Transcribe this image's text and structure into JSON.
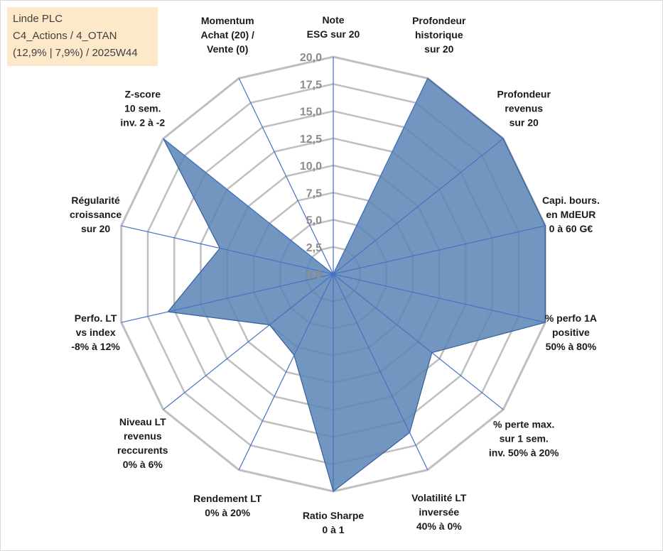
{
  "info_box": {
    "line1": "Linde PLC",
    "line2": "C4_Actions / 4_OTAN",
    "line3": "(12,9% | 7,9%) / 2025W44",
    "background": "#fde9c9"
  },
  "chart_data": {
    "type": "radar",
    "title": "",
    "rmin": 0,
    "rmax": 20,
    "ticks": [
      "0,0",
      "2,5",
      "5,0",
      "7,5",
      "10,0",
      "12,5",
      "15,0",
      "17,5",
      "20,0"
    ],
    "tick_values": [
      0,
      2.5,
      5,
      7.5,
      10,
      12.5,
      15,
      17.5,
      20
    ],
    "axes": [
      {
        "label": [
          "Note",
          "ESG sur 20"
        ]
      },
      {
        "label": [
          "Profondeur",
          "historique",
          "sur 20"
        ]
      },
      {
        "label": [
          "Profondeur",
          "revenus",
          "sur 20"
        ]
      },
      {
        "label": [
          "Capi. bours.",
          "en MdEUR",
          "0 à 60 G€"
        ]
      },
      {
        "label": [
          "% perfo 1A",
          "positive",
          "50% à 80%"
        ]
      },
      {
        "label": [
          "% perte max.",
          "sur 1 sem.",
          "inv. 50% à 20%"
        ]
      },
      {
        "label": [
          "Volatilité LT",
          "inversée",
          "40% à 0%"
        ]
      },
      {
        "label": [
          "Ratio Sharpe",
          "0 à 1"
        ]
      },
      {
        "label": [
          "Rendement LT",
          "0% à 20%"
        ]
      },
      {
        "label": [
          "Niveau LT",
          "revenus",
          "reccurents",
          "0% à 6%"
        ]
      },
      {
        "label": [
          "Perfo. LT",
          "vs index",
          "-8% à 12%"
        ]
      },
      {
        "label": [
          "Régularité",
          "croissance",
          "sur 20"
        ]
      },
      {
        "label": [
          "Z-score",
          "10 sem.",
          "inv. 2 à -2"
        ]
      },
      {
        "label": [
          "Momentum",
          "Achat (20) /",
          "Vente (0)"
        ]
      }
    ],
    "series": [
      {
        "name": "Linde PLC",
        "values": [
          0,
          20,
          20,
          20,
          20,
          11.6,
          16.2,
          20,
          8.3,
          7.5,
          15.6,
          10.7,
          20,
          0
        ]
      }
    ],
    "colors": {
      "fill": "#5b84b6",
      "stroke": "#2f5f9e",
      "spokes": "#4472c4",
      "grid": "#bfbfbf",
      "tick_text": "#8c8c8c"
    }
  }
}
